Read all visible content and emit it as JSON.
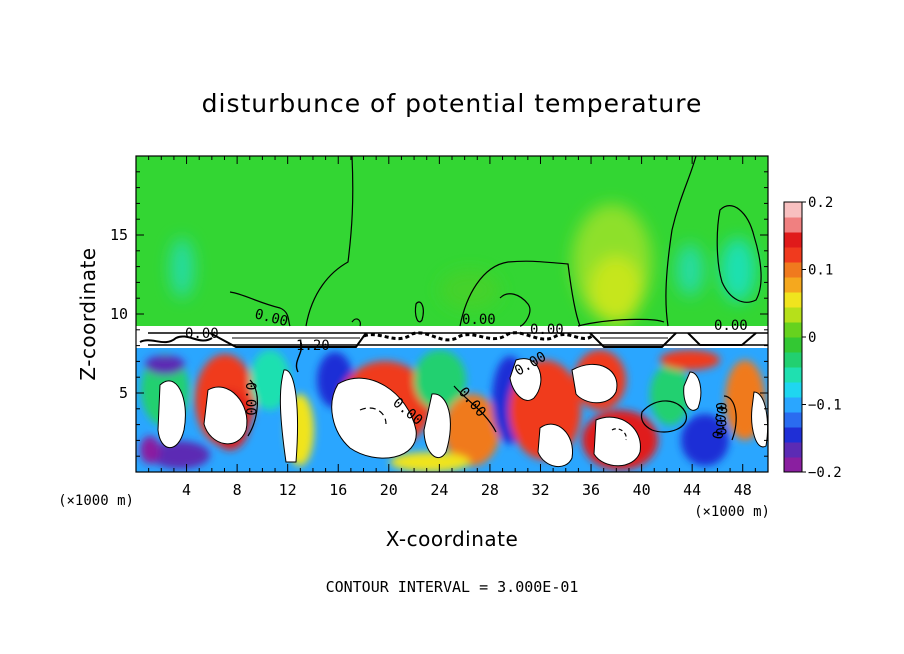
{
  "chart_data": {
    "type": "heatmap",
    "title": "disturbunce of potential temperature",
    "xlabel": "X-coordinate",
    "ylabel": "Z-coordinate",
    "x_unit_label": "(×1000 m)",
    "y_unit_label": "(×1000 m)",
    "xlim": [
      0,
      50
    ],
    "ylim": [
      0,
      20
    ],
    "x_ticks": [
      4,
      8,
      12,
      16,
      20,
      24,
      28,
      32,
      36,
      40,
      44,
      48
    ],
    "y_ticks": [
      5,
      10,
      15
    ],
    "colorbar": {
      "range": [
        -0.2,
        0.2
      ],
      "ticks": [
        0.2,
        0.1,
        0,
        -0.1,
        -0.2
      ],
      "tick_labels": [
        "0.2",
        "0.1",
        "0",
        "-0.1",
        "-0.2"
      ],
      "colors": [
        "#8a1fa0",
        "#5b2bb4",
        "#1f2fd6",
        "#2a6cf0",
        "#2aa6ff",
        "#1fd6f0",
        "#1fe0b0",
        "#22d070",
        "#33c833",
        "#66d21e",
        "#b6e01a",
        "#f0e41e",
        "#f5a81e",
        "#f07a1e",
        "#f03a1e",
        "#e01a1a",
        "#f08080",
        "#f8c0c0"
      ]
    },
    "contour_labels": [
      "0.00",
      "0.00",
      "0.00",
      "0.00",
      "1.20",
      "0.00",
      "0.00",
      "0.00",
      "0.00",
      "0.00",
      "0.00",
      "0.00"
    ],
    "annotation": "CONTOUR INTERVAL = 3.000E-01",
    "grid": false
  },
  "colors": {
    "background": "#ffffff",
    "upper_field": "#33d633",
    "frame": "#000000"
  }
}
